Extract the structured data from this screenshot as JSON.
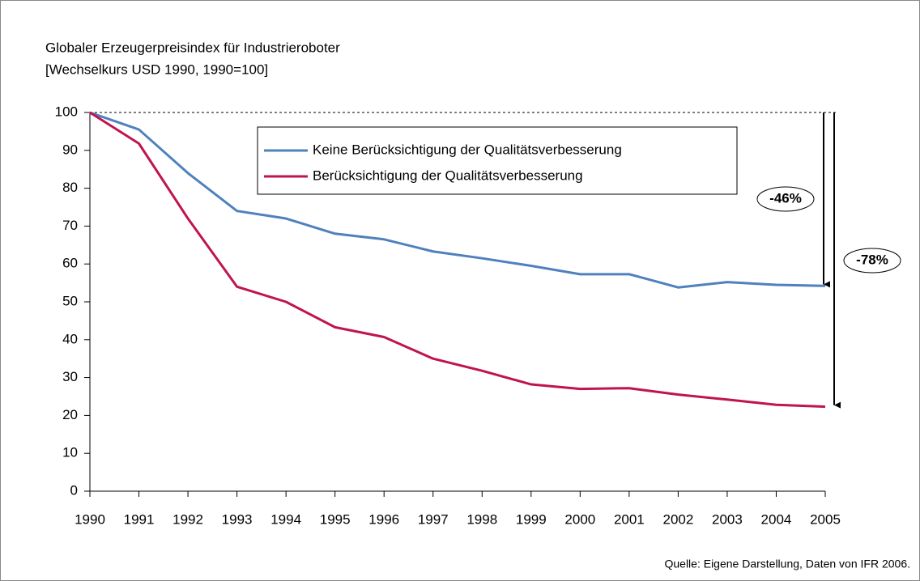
{
  "chart_data": {
    "type": "line",
    "title": "Globaler Erzeugerpreisindex für Industrieroboter",
    "subtitle": "[Wechselkurs USD 1990, 1990=100]",
    "categories": [
      "1990",
      "1991",
      "1992",
      "1993",
      "1994",
      "1995",
      "1996",
      "1997",
      "1998",
      "1999",
      "2000",
      "2001",
      "2002",
      "2003",
      "2004",
      "2005"
    ],
    "series": [
      {
        "name": "Keine Berücksichtigung der Qualitätsverbesserung",
        "color": "#4f81bd",
        "values": [
          100,
          95.5,
          84,
          74,
          72,
          68,
          66.5,
          63.3,
          61.5,
          59.5,
          57.3,
          57.3,
          53.8,
          55.2,
          54.5,
          54.2
        ]
      },
      {
        "name": "Berücksichtigung der Qualitätsverbesserung",
        "color": "#c0144c",
        "values": [
          100,
          91.8,
          72,
          54,
          50,
          43.3,
          40.7,
          35,
          31.8,
          28.2,
          27,
          27.2,
          25.5,
          24.2,
          22.8,
          22.3
        ]
      }
    ],
    "ylim": [
      0,
      100
    ],
    "yticks": [
      0,
      10,
      20,
      30,
      40,
      50,
      60,
      70,
      80,
      90,
      100
    ],
    "annotations": [
      "-46%",
      "-78%"
    ],
    "source": "Quelle: Eigene Darstellung, Daten von IFR 2006."
  }
}
